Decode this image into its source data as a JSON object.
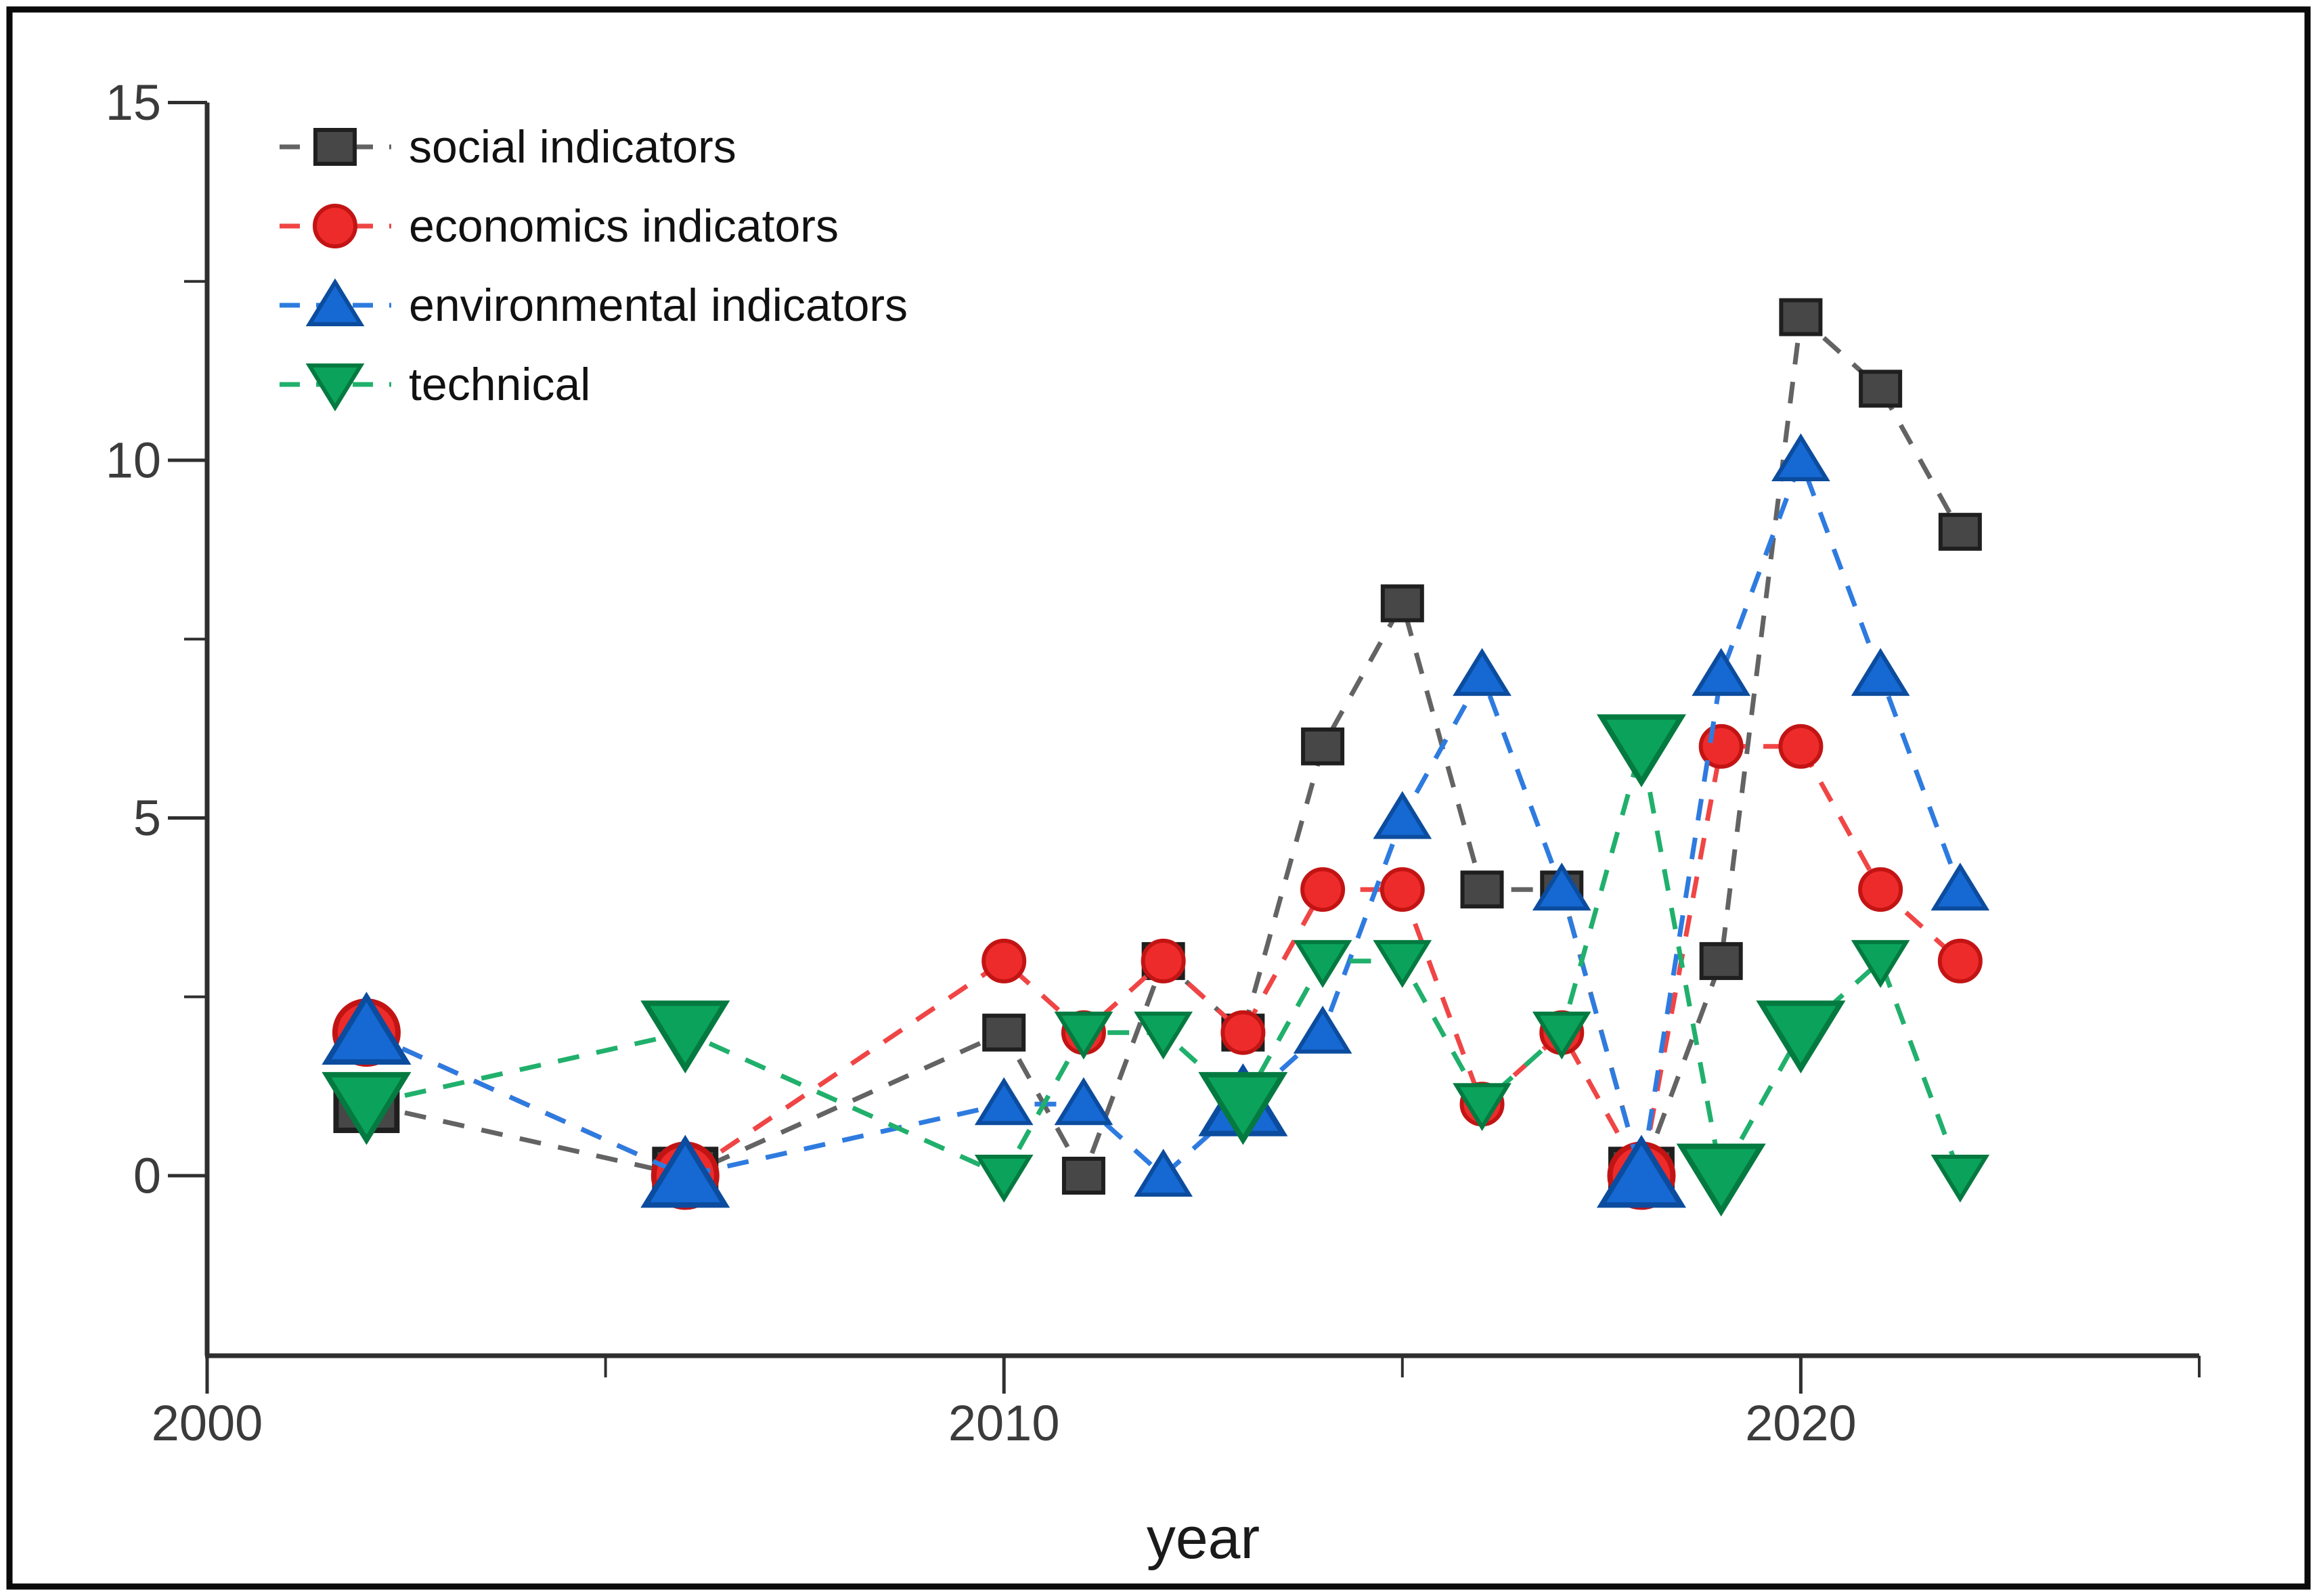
{
  "figure": {
    "background": "#ffffff",
    "border_color": "#0a0a0a"
  },
  "chart_data": {
    "type": "line",
    "title": "",
    "xlabel": "year",
    "ylabel": "",
    "xlim": [
      2000,
      2025
    ],
    "ylim": [
      -2.5,
      15
    ],
    "x_ticks": [
      2000,
      2010,
      2020
    ],
    "x_minor_ticks": [
      2005,
      2015,
      2025
    ],
    "y_ticks": [
      0,
      5,
      10,
      15
    ],
    "y_minor_ticks": [
      2.5,
      7.5,
      12.5
    ],
    "grid": false,
    "legend_position": "top-left",
    "axis_color": "#2f2f2f",
    "tick_label_color": "#3b3b3b",
    "xlabel_color": "#1a1a1a",
    "legend_text_color": "#111111",
    "series": [
      {
        "name": "social indicators",
        "marker": "square",
        "color": "#474747",
        "edge_color": "#1f1f1f",
        "line_color": "#636363",
        "points": [
          {
            "year": 2002,
            "value": 1,
            "big": true
          },
          {
            "year": 2006,
            "value": 0,
            "big": true
          },
          {
            "year": 2010,
            "value": 2
          },
          {
            "year": 2011,
            "value": 0
          },
          {
            "year": 2012,
            "value": 3
          },
          {
            "year": 2013,
            "value": 2
          },
          {
            "year": 2014,
            "value": 6
          },
          {
            "year": 2015,
            "value": 8
          },
          {
            "year": 2016,
            "value": 4
          },
          {
            "year": 2017,
            "value": 4
          },
          {
            "year": 2018,
            "value": 0,
            "big": true
          },
          {
            "year": 2019,
            "value": 3
          },
          {
            "year": 2020,
            "value": 12
          },
          {
            "year": 2021,
            "value": 11
          },
          {
            "year": 2022,
            "value": 9
          }
        ]
      },
      {
        "name": "economics indicators",
        "marker": "circle",
        "color": "#EE2B2B",
        "edge_color": "#C31414",
        "line_color": "#F04545",
        "points": [
          {
            "year": 2002,
            "value": 2,
            "big": true
          },
          {
            "year": 2006,
            "value": 0,
            "big": true
          },
          {
            "year": 2010,
            "value": 3
          },
          {
            "year": 2011,
            "value": 2
          },
          {
            "year": 2012,
            "value": 3
          },
          {
            "year": 2013,
            "value": 2
          },
          {
            "year": 2014,
            "value": 4
          },
          {
            "year": 2015,
            "value": 4
          },
          {
            "year": 2016,
            "value": 1
          },
          {
            "year": 2017,
            "value": 2
          },
          {
            "year": 2018,
            "value": 0,
            "big": true
          },
          {
            "year": 2019,
            "value": 6
          },
          {
            "year": 2020,
            "value": 6
          },
          {
            "year": 2021,
            "value": 4
          },
          {
            "year": 2022,
            "value": 3
          }
        ]
      },
      {
        "name": "environmental indicators",
        "marker": "triangle-up",
        "color": "#1668D2",
        "edge_color": "#0B4C9E",
        "line_color": "#2E7BE0",
        "points": [
          {
            "year": 2002,
            "value": 2,
            "big": true
          },
          {
            "year": 2006,
            "value": 0,
            "big": true
          },
          {
            "year": 2010,
            "value": 1
          },
          {
            "year": 2011,
            "value": 1
          },
          {
            "year": 2012,
            "value": 0
          },
          {
            "year": 2013,
            "value": 1,
            "big": true
          },
          {
            "year": 2014,
            "value": 2
          },
          {
            "year": 2015,
            "value": 5
          },
          {
            "year": 2016,
            "value": 7
          },
          {
            "year": 2017,
            "value": 4
          },
          {
            "year": 2018,
            "value": 0,
            "big": true
          },
          {
            "year": 2019,
            "value": 7
          },
          {
            "year": 2020,
            "value": 10
          },
          {
            "year": 2021,
            "value": 7
          },
          {
            "year": 2022,
            "value": 4
          }
        ]
      },
      {
        "name": "technical",
        "marker": "triangle-down",
        "color": "#0BA35B",
        "edge_color": "#057A40",
        "line_color": "#20B06C",
        "points": [
          {
            "year": 2002,
            "value": 1,
            "big": true
          },
          {
            "year": 2006,
            "value": 2,
            "big": true
          },
          {
            "year": 2010,
            "value": 0
          },
          {
            "year": 2011,
            "value": 2
          },
          {
            "year": 2012,
            "value": 2
          },
          {
            "year": 2013,
            "value": 1,
            "big": true
          },
          {
            "year": 2014,
            "value": 3
          },
          {
            "year": 2015,
            "value": 3
          },
          {
            "year": 2016,
            "value": 1
          },
          {
            "year": 2017,
            "value": 2
          },
          {
            "year": 2018,
            "value": 6,
            "big": true
          },
          {
            "year": 2019,
            "value": 0,
            "big": true
          },
          {
            "year": 2020,
            "value": 2,
            "big": true
          },
          {
            "year": 2021,
            "value": 3
          },
          {
            "year": 2022,
            "value": 0
          }
        ]
      }
    ]
  }
}
